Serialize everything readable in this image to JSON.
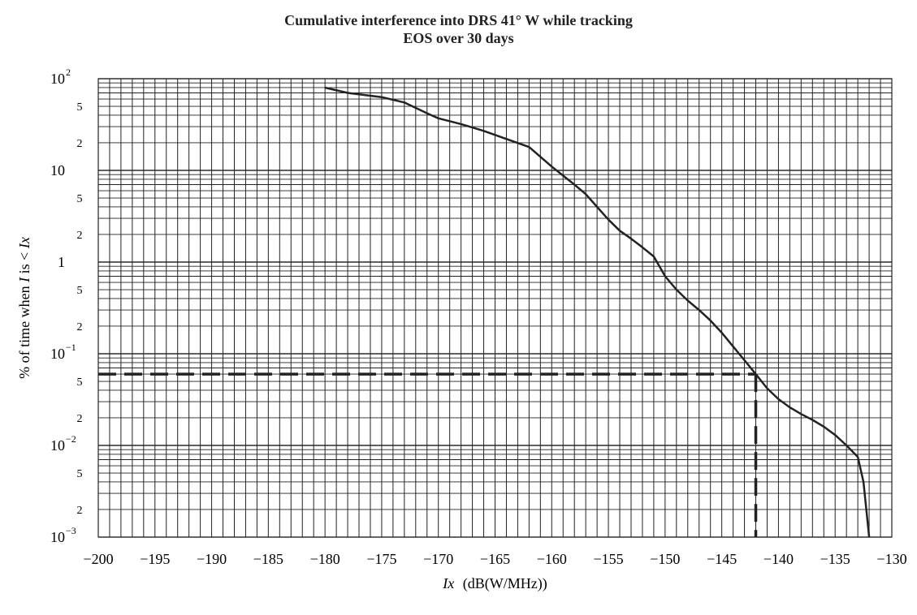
{
  "chart_data": {
    "type": "line",
    "title_line1": "Cumulative interference into DRS 41° W while tracking",
    "title_line2": "EOS over 30 days",
    "xlabel_var": "Ix",
    "xlabel_unit": "(dB(W/MHz))",
    "ylabel_prefix": "% of time when ",
    "ylabel_var1": "I",
    "ylabel_mid": " is < ",
    "ylabel_var2": "Ix",
    "xlim": [
      -200,
      -130
    ],
    "ylim": [
      0.001,
      100
    ],
    "y_scale": "log",
    "grid": "on",
    "x_ticks": [
      "−200",
      "−195",
      "−190",
      "−185",
      "−180",
      "−175",
      "−170",
      "−165",
      "−160",
      "−155",
      "−150",
      "−145",
      "−140",
      "−135",
      "−130"
    ],
    "y_decades": [
      {
        "value": 100,
        "base": "10",
        "exp": "2"
      },
      {
        "value": 10,
        "base": "10",
        "exp": ""
      },
      {
        "value": 1,
        "base": "1",
        "exp": ""
      },
      {
        "value": 0.1,
        "base": "10",
        "exp": "−1"
      },
      {
        "value": 0.01,
        "base": "10",
        "exp": "−2"
      },
      {
        "value": 0.001,
        "base": "10",
        "exp": "−3"
      }
    ],
    "y_minor_labels": [
      "5",
      "2"
    ],
    "series": [
      {
        "style": "solid",
        "x": [
          -180,
          -178,
          -175,
          -173,
          -171,
          -170,
          -168,
          -166,
          -164,
          -162,
          -160,
          -158,
          -157,
          -156,
          -155,
          -154,
          -153,
          -152,
          -151,
          -150,
          -149,
          -148,
          -147,
          -146,
          -145,
          -144,
          -143,
          -142,
          -141,
          -140,
          -139,
          -138,
          -137,
          -136,
          -135,
          -134,
          -133,
          -132.5,
          -132
        ],
        "y": [
          80,
          70,
          63,
          55,
          42,
          37,
          32,
          27,
          22,
          18,
          11,
          7,
          5.5,
          4,
          2.9,
          2.2,
          1.8,
          1.45,
          1.15,
          0.7,
          0.5,
          0.38,
          0.3,
          0.23,
          0.17,
          0.12,
          0.085,
          0.06,
          0.042,
          0.032,
          0.026,
          0.022,
          0.019,
          0.016,
          0.013,
          0.01,
          0.0075,
          0.004,
          0.001
        ]
      }
    ],
    "reference": {
      "style": "dashed",
      "x": -142,
      "y": 0.06
    }
  }
}
